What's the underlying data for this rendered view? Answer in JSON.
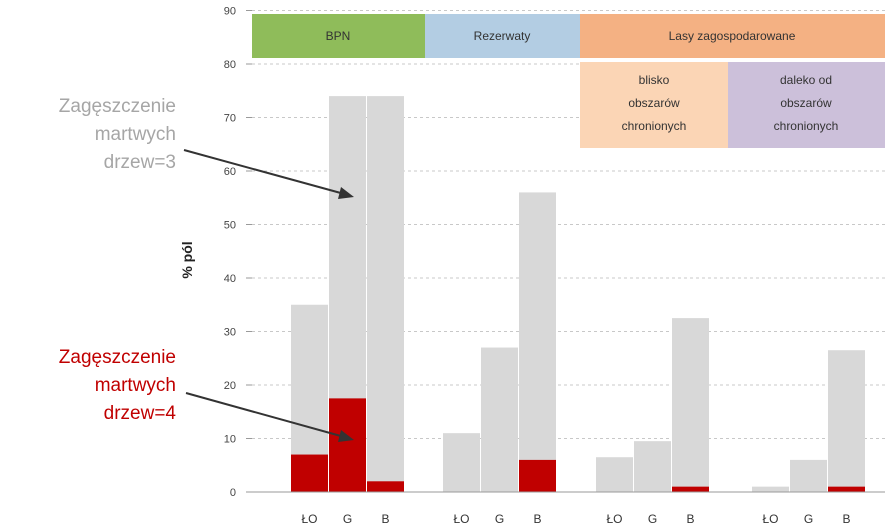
{
  "colors": {
    "total": "#d8d8d8",
    "density4": "#c00000",
    "bpn": "#8fbc5a",
    "rezerwaty": "#b3cde3",
    "lasy": "#f4b183",
    "blisko": "#fbd5b5",
    "daleko": "#ccc0da",
    "annotation_gray": "#a6a6a6",
    "annotation_red": "#c00000"
  },
  "chart_data": {
    "type": "bar",
    "ylabel": "% pól",
    "ylim": [
      0,
      90
    ],
    "yticks": [
      0,
      10,
      20,
      30,
      40,
      50,
      60,
      70,
      80,
      90
    ],
    "grid": true,
    "groups": [
      {
        "categories": [
          "ŁO",
          "G",
          "B"
        ]
      },
      {
        "categories": [
          "ŁO",
          "G",
          "B"
        ]
      },
      {
        "categories": [
          "ŁO",
          "G",
          "B"
        ]
      },
      {
        "categories": [
          "ŁO",
          "G",
          "B"
        ]
      }
    ],
    "series": [
      {
        "values": [
          [
            35,
            74,
            74
          ],
          [
            11,
            27,
            56
          ],
          [
            6.5,
            9.5,
            32.5
          ],
          [
            1,
            6,
            26.5
          ]
        ]
      },
      {
        "values": [
          [
            7,
            17.5,
            2
          ],
          [
            0,
            0,
            6
          ],
          [
            0,
            0,
            1
          ],
          [
            0,
            0,
            1
          ]
        ]
      }
    ],
    "headers": {
      "bpn": "BPN",
      "rezerwaty": "Rezerwaty",
      "lasy": "Lasy zagospodarowane",
      "blisko": [
        "blisko",
        "obszarów",
        "chronionych"
      ],
      "daleko": [
        "daleko od",
        "obszarów",
        "chronionych"
      ]
    },
    "annotations": {
      "gray": [
        "Zagęszczenie",
        "martwych",
        "drzew=3"
      ],
      "red": [
        "Zagęszczenie",
        "martwych",
        "drzew=4"
      ]
    }
  }
}
